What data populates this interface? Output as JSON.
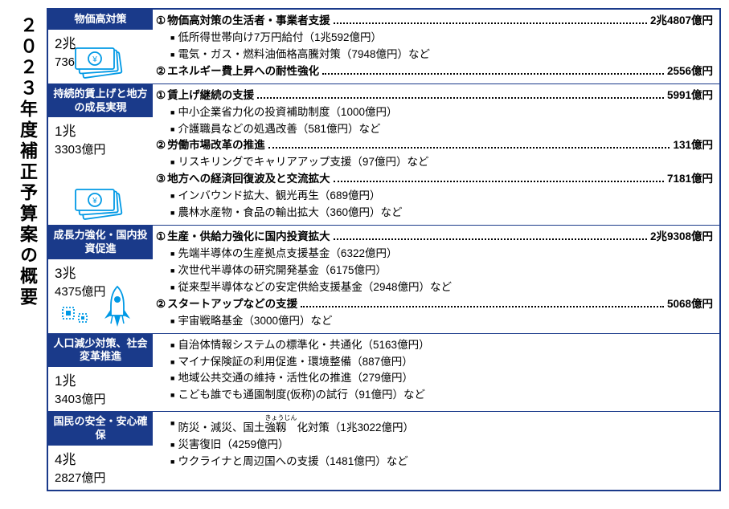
{
  "page_title": "２０２３年度補正予算案の概要",
  "sections": [
    {
      "header": "物価高対策",
      "amount_lines": [
        "2兆",
        "7363億円"
      ],
      "items": [
        {
          "num": "①",
          "label": "物価高対策の生活者・事業者支援",
          "value": "2兆4807億円",
          "subs": [
            "低所得世帯向け7万円給付（1兆592億円）",
            "電気・ガス・燃料油価格高騰対策（7948億円）など"
          ]
        },
        {
          "num": "②",
          "label": "エネルギー費上昇への耐性強化",
          "value": "2556億円",
          "subs": []
        }
      ],
      "icon": "money"
    },
    {
      "header": "持続的賃上げと地方の成長実現",
      "amount_lines": [
        "1兆",
        "3303億円"
      ],
      "items": [
        {
          "num": "①",
          "label": "賃上げ継続の支援",
          "value": "5991億円",
          "subs": [
            "中小企業省力化の投資補助制度（1000億円）",
            "介護職員などの処遇改善（581億円）など"
          ]
        },
        {
          "num": "②",
          "label": "労働市場改革の推進",
          "value": "131億円",
          "subs": [
            "リスキリングでキャリアアップ支援（97億円）など"
          ]
        },
        {
          "num": "③",
          "label": "地方への経済回復波及と交流拡大",
          "value": "7181億円",
          "subs": [
            "インバウンド拡大、観光再生（689億円）",
            "農林水産物・食品の輸出拡大（360億円）など"
          ]
        }
      ],
      "icon": "money"
    },
    {
      "header": "成長力強化・国内投資促進",
      "amount_lines": [
        "3兆",
        "4375億円"
      ],
      "items": [
        {
          "num": "①",
          "label": "生産・供給力強化に国内投資拡大",
          "value": "2兆9308億円",
          "subs": [
            "先端半導体の生産拠点支援基金（6322億円）",
            "次世代半導体の研究開発基金（6175億円）",
            "従来型半導体などの安定供給支援基金（2948億円）など"
          ]
        },
        {
          "num": "②",
          "label": "スタートアップなどの支援",
          "value": "5068億円",
          "subs": [
            "宇宙戦略基金（3000億円）など"
          ]
        }
      ],
      "icon": "rocket"
    },
    {
      "header": "人口減少対策、社会変革推進",
      "amount_lines": [
        "1兆",
        "3403億円"
      ],
      "items": [
        {
          "subs": [
            "自治体情報システムの標準化・共通化（5163億円）",
            "マイナ保険証の利用促進・環境整備（887億円）",
            "地域公共交通の維持・活性化の推進（279億円）",
            "こども誰でも通園制度(仮称)の試行（91億円）など"
          ]
        }
      ]
    },
    {
      "header": "国民の安全・安心確保",
      "amount_lines": [
        "4兆",
        "2827億円"
      ],
      "items": [
        {
          "subs": [
            "防災・減災、国土強靱化対策（1兆3022億円）",
            "災害復旧（4259億円）",
            "ウクライナと周辺国への支援（1481億円）など"
          ]
        }
      ],
      "ruby": {
        "text": "きょうじん",
        "at": "強靱"
      }
    }
  ],
  "colors": {
    "primary": "#1a3a8a",
    "accent": "#0099e5"
  }
}
